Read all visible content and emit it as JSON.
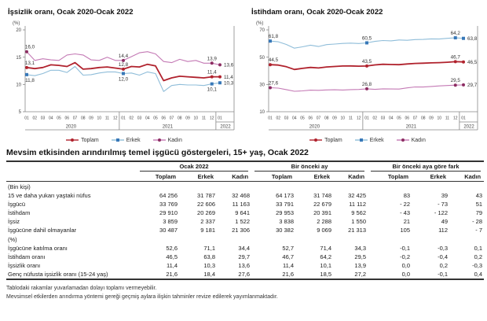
{
  "colors": {
    "toplam_line": "#b0222d",
    "erkek_line": "#8fbdd9",
    "erkek_marker": "#3878b8",
    "kadin_line": "#c47ab5",
    "kadin_marker": "#8c2d62",
    "axis": "#888888",
    "table_border": "#333333"
  },
  "chart_data": [
    {
      "type": "line",
      "title": "İşsizlik oranı, Ocak 2020-Ocak 2022",
      "unit_label": "(%)",
      "ylim": [
        5,
        20
      ],
      "yticks": [
        5,
        10,
        15,
        20
      ],
      "grid": false,
      "legend_position": "bottom",
      "x_months": [
        "01",
        "02",
        "03",
        "04",
        "05",
        "06",
        "07",
        "08",
        "09",
        "10",
        "11",
        "12",
        "01",
        "02",
        "03",
        "04",
        "05",
        "06",
        "07",
        "08",
        "09",
        "10",
        "11",
        "12",
        "01"
      ],
      "x_years": [
        {
          "label": "2020",
          "count": 12
        },
        {
          "label": "2021",
          "count": 12
        },
        {
          "label": "2022",
          "count": 1
        }
      ],
      "series": [
        {
          "name": "Toplam",
          "color": "#b0222d",
          "marker": "circle",
          "marker_color": "#b0222d",
          "line_width": 1.8,
          "label_side": "above",
          "values": [
            13.1,
            12.9,
            13.1,
            13.6,
            13.5,
            13.3,
            14.0,
            12.8,
            12.9,
            13.1,
            13.2,
            13.0,
            12.8,
            13.3,
            13.2,
            13.7,
            13.4,
            10.7,
            11.2,
            11.5,
            11.4,
            11.3,
            11.2,
            11.4,
            11.4
          ],
          "point_labels": {
            "0": "13,1",
            "12": "12,8",
            "23": "11,4",
            "24": "11,4"
          }
        },
        {
          "name": "Erkek",
          "color": "#8fbdd9",
          "marker": "square",
          "marker_color": "#3878b8",
          "line_width": 1.1,
          "label_side": "below",
          "values": [
            11.8,
            11.6,
            12.0,
            12.6,
            12.6,
            12.2,
            13.3,
            11.7,
            11.8,
            12.1,
            12.3,
            12.3,
            12.0,
            12.1,
            11.7,
            12.3,
            12.0,
            8.7,
            9.8,
            10.0,
            9.9,
            9.9,
            9.8,
            10.1,
            10.3
          ],
          "point_labels": {
            "0": "11,8",
            "12": "12,0",
            "23": "10,1",
            "24": "10,3"
          }
        },
        {
          "name": "Kadın",
          "color": "#c47ab5",
          "marker": "circle",
          "marker_color": "#8c2d62",
          "line_width": 1.1,
          "label_side": "above",
          "values": [
            16.0,
            14.4,
            14.7,
            14.5,
            14.4,
            15.4,
            15.6,
            15.4,
            14.5,
            14.4,
            15.0,
            14.4,
            14.4,
            15.1,
            15.8,
            16.0,
            15.6,
            14.2,
            14.0,
            14.6,
            14.2,
            14.4,
            13.9,
            13.9,
            13.6
          ],
          "point_labels": {
            "0": "16,0",
            "12": "14,4",
            "23": "13,9",
            "24": "13,6"
          }
        }
      ]
    },
    {
      "type": "line",
      "title": "İstihdam oranı, Ocak 2020-Ocak 2022",
      "unit_label": "(%)",
      "ylim": [
        10,
        70
      ],
      "yticks": [
        10,
        30,
        50,
        70
      ],
      "grid": false,
      "legend_position": "bottom",
      "x_months": [
        "01",
        "02",
        "03",
        "04",
        "05",
        "06",
        "07",
        "08",
        "09",
        "10",
        "11",
        "12",
        "01",
        "02",
        "03",
        "04",
        "05",
        "06",
        "07",
        "08",
        "09",
        "10",
        "11",
        "12",
        "01"
      ],
      "x_years": [
        {
          "label": "2020",
          "count": 12
        },
        {
          "label": "2021",
          "count": 12
        },
        {
          "label": "2022",
          "count": 1
        }
      ],
      "series": [
        {
          "name": "Toplam",
          "color": "#b0222d",
          "marker": "circle",
          "marker_color": "#b0222d",
          "line_width": 1.8,
          "label_side": "above",
          "values": [
            44.5,
            44.2,
            43.0,
            41.0,
            41.8,
            42.5,
            42.1,
            42.8,
            43.2,
            43.5,
            43.6,
            43.4,
            43.5,
            44.3,
            44.8,
            44.6,
            44.5,
            45.0,
            45.4,
            45.6,
            45.8,
            46.0,
            46.3,
            46.7,
            46.5
          ],
          "point_labels": {
            "0": "44,5",
            "12": "43,5",
            "23": "46,7",
            "24": "46,5"
          }
        },
        {
          "name": "Erkek",
          "color": "#8fbdd9",
          "marker": "square",
          "marker_color": "#3878b8",
          "line_width": 1.1,
          "label_side": "above",
          "values": [
            61.8,
            61.3,
            59.3,
            56.6,
            57.6,
            58.8,
            57.8,
            59.2,
            59.6,
            60.1,
            60.3,
            60.0,
            60.5,
            61.6,
            62.2,
            62.0,
            62.6,
            62.4,
            62.9,
            63.0,
            63.4,
            63.3,
            63.8,
            64.2,
            63.8
          ],
          "point_labels": {
            "0": "61,8",
            "12": "60,5",
            "23": "64,2",
            "24": "63,8"
          }
        },
        {
          "name": "Kadın",
          "color": "#c47ab5",
          "marker": "circle",
          "marker_color": "#8c2d62",
          "line_width": 1.1,
          "label_side": "above",
          "values": [
            27.6,
            27.3,
            26.2,
            25.0,
            25.3,
            25.8,
            25.7,
            26.0,
            26.1,
            25.9,
            26.2,
            26.3,
            26.8,
            26.4,
            26.8,
            26.7,
            26.6,
            27.5,
            28.2,
            28.1,
            28.5,
            28.9,
            29.2,
            29.5,
            29.7
          ],
          "point_labels": {
            "0": "27,6",
            "12": "26,8",
            "23": "29,5",
            "24": "29,7"
          }
        }
      ]
    }
  ],
  "table": {
    "title": "Mevsim etkisinden arındırılmış temel işgücü göstergeleri, 15+ yaş, Ocak 2022",
    "col_groups": [
      "Ocak 2022",
      "Bir önceki ay",
      "Bir önceki aya göre fark"
    ],
    "sub_cols": [
      "Toplam",
      "Erkek",
      "Kadın"
    ],
    "sections": [
      {
        "header": "(Bin kişi)",
        "bold_totals": true,
        "rows": [
          {
            "label": "15 ve daha yukarı yaştaki nüfus",
            "values": [
              "64 256",
              "31 787",
              "32 468",
              "64 173",
              "31 748",
              "32 425",
              "83",
              "39",
              "43"
            ]
          },
          {
            "label": "İşgücü",
            "values": [
              "33 769",
              "22 606",
              "11 163",
              "33 791",
              "22 679",
              "11 112",
              "- 22",
              "- 73",
              "51"
            ]
          },
          {
            "label": "İstihdam",
            "values": [
              "29 910",
              "20 269",
              "9 641",
              "29 953",
              "20 391",
              "9 562",
              "- 43",
              "- 122",
              "79"
            ]
          },
          {
            "label": "İşsiz",
            "values": [
              "3 859",
              "2 337",
              "1 522",
              "3 838",
              "2 288",
              "1 550",
              "21",
              "49",
              "- 28"
            ]
          },
          {
            "label": "İşgücüne dahil olmayanlar",
            "values": [
              "30 487",
              "9 181",
              "21 306",
              "30 382",
              "9 069",
              "21 313",
              "105",
              "112",
              "- 7"
            ]
          }
        ]
      },
      {
        "header": "(%)",
        "bold_totals": false,
        "rows": [
          {
            "label": "İşgücüne katılma oranı",
            "values": [
              "52,6",
              "71,1",
              "34,4",
              "52,7",
              "71,4",
              "34,3",
              "-0,1",
              "-0,3",
              "0,1"
            ]
          },
          {
            "label": "İstihdam oranı",
            "values": [
              "46,5",
              "63,8",
              "29,7",
              "46,7",
              "64,2",
              "29,5",
              "-0,2",
              "-0,4",
              "0,2"
            ]
          },
          {
            "label": "İşsizlik oranı",
            "values": [
              "11,4",
              "10,3",
              "13,6",
              "11,4",
              "10,1",
              "13,9",
              "0,0",
              "0,2",
              "-0,3"
            ]
          },
          {
            "label": "Genç nüfusta işsizlik oranı (15-24 yaş)",
            "values": [
              "21,6",
              "18,4",
              "27,6",
              "21,6",
              "18,5",
              "27,2",
              "0,0",
              "-0,1",
              "0,4"
            ]
          }
        ]
      }
    ],
    "footnotes": [
      "Tablodaki rakamlar yuvarlamadan dolayı toplamı vermeyebilir.",
      "Mevsimsel etkilerden arındırma yöntemi gereği geçmiş aylara ilişkin tahminler revize edilerek yayımlanmaktadır."
    ]
  }
}
